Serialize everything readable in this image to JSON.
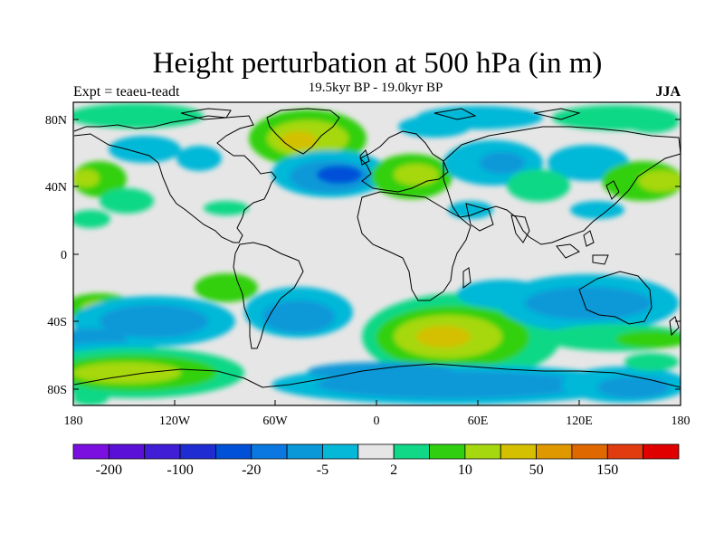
{
  "header": {
    "title": "Height perturbation at 500 hPa (in m)",
    "subtitle": "19.5kyr BP - 19.0kyr BP",
    "left_label": "Expt = teaeu-teadt",
    "right_label": "JJA"
  },
  "map": {
    "projection": "cylindrical-equidistant",
    "lon_range": [
      -180,
      180
    ],
    "lat_range": [
      -90,
      90
    ],
    "lon_ticks": [
      "180",
      "120W",
      "60W",
      "0",
      "60E",
      "120E",
      "180"
    ],
    "lat_ticks": [
      "80N",
      "40N",
      "0",
      "40S",
      "80S"
    ],
    "background_color": "#e6e6e6",
    "coastline_color": "#000000"
  },
  "colorbar": {
    "colors": [
      "#7a0fe0",
      "#5b10d8",
      "#3f1ed6",
      "#1e2cd2",
      "#0050d8",
      "#0a78e0",
      "#0a98d8",
      "#05b8d8",
      "#e6e6e6",
      "#10d886",
      "#30d010",
      "#a6d810",
      "#d4c000",
      "#e09800",
      "#e06800",
      "#e03c10",
      "#e00000"
    ],
    "labels": [
      "-200",
      "-100",
      "-20",
      "-5",
      "2",
      "10",
      "50",
      "150"
    ]
  }
}
